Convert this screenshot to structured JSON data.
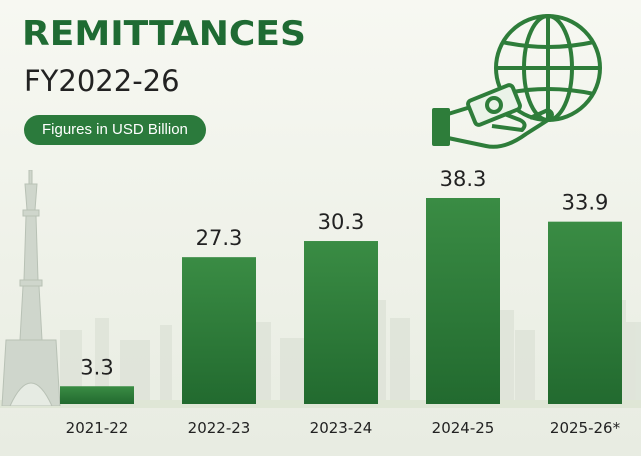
{
  "header": {
    "title": "REMITTANCES",
    "subtitle": "FY2022-26",
    "units_badge": "Figures in USD Billion"
  },
  "icons": {
    "globe": "globe-icon",
    "hand_money": "hand-money-icon",
    "monument": "minar-monument-icon"
  },
  "colors": {
    "bar": "#2e7d3a",
    "bar_dark": "#1f5f2b",
    "title": "#1f6b33",
    "badge": "#2b7a3c"
  },
  "chart_data": {
    "type": "bar",
    "title": "REMITTANCES",
    "subtitle": "FY2022-26",
    "ylabel": "",
    "xlabel": "",
    "categories": [
      "2021-22",
      "2022-23",
      "2023-24",
      "2024-25",
      "2025-26*"
    ],
    "values": [
      3.3,
      27.3,
      30.3,
      38.3,
      33.9
    ],
    "value_labels": [
      "3.3",
      "27.3",
      "30.3",
      "38.3",
      "33.9"
    ],
    "ylim": [
      0,
      38.3
    ],
    "grid": false,
    "legend": "none"
  }
}
